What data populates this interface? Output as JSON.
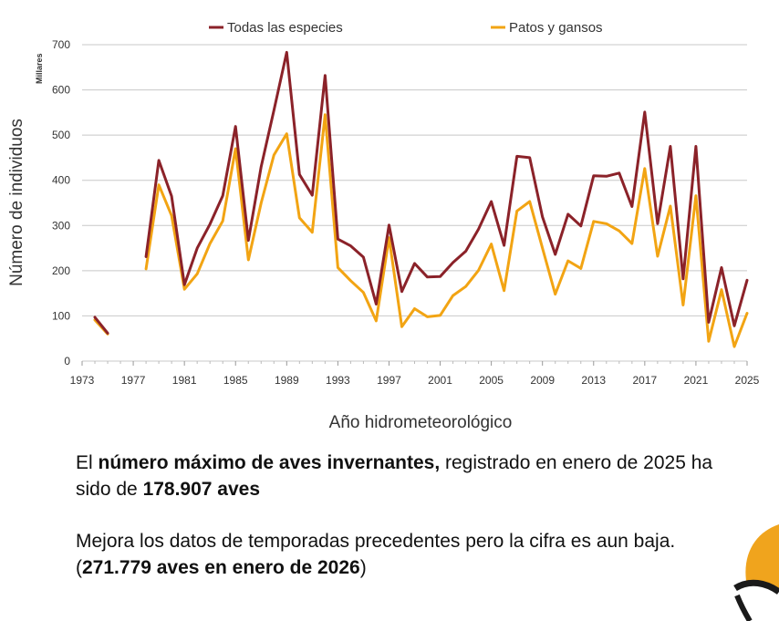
{
  "chart_data": {
    "type": "line",
    "title": "",
    "xlabel": "Año hidrometeorológico",
    "ylabel": "Número de individuos",
    "units_label": "Millares",
    "xlim": [
      1973,
      2025
    ],
    "ylim": [
      0,
      700
    ],
    "x_ticks": [
      1973,
      1977,
      1981,
      1985,
      1989,
      1993,
      1997,
      2001,
      2005,
      2009,
      2013,
      2017,
      2021,
      2025
    ],
    "y_ticks": [
      0,
      100,
      200,
      300,
      400,
      500,
      600,
      700
    ],
    "legend_position": "top",
    "grid": true,
    "series": [
      {
        "name": "Todas las especies",
        "color": "#8b2229",
        "segments": [
          [
            [
              1974,
              97
            ],
            [
              1975,
              62
            ]
          ],
          [
            [
              1978,
              231
            ],
            [
              1979,
              444
            ],
            [
              1980,
              365
            ],
            [
              1981,
              169
            ],
            [
              1982,
              250
            ],
            [
              1983,
              303
            ],
            [
              1984,
              366
            ],
            [
              1985,
              519
            ],
            [
              1986,
              267
            ],
            [
              1987,
              430
            ],
            [
              1988,
              555
            ],
            [
              1989,
              683
            ],
            [
              1990,
              413
            ],
            [
              1991,
              367
            ],
            [
              1992,
              632
            ],
            [
              1993,
              270
            ],
            [
              1994,
              255
            ],
            [
              1995,
              230
            ],
            [
              1996,
              126
            ],
            [
              1997,
              301
            ],
            [
              1998,
              154
            ],
            [
              1999,
              216
            ],
            [
              2000,
              186
            ],
            [
              2001,
              187
            ],
            [
              2002,
              218
            ],
            [
              2003,
              243
            ],
            [
              2004,
              292
            ],
            [
              2005,
              353
            ],
            [
              2006,
              256
            ],
            [
              2007,
              453
            ],
            [
              2008,
              450
            ],
            [
              2009,
              319
            ],
            [
              2010,
              236
            ],
            [
              2011,
              325
            ],
            [
              2012,
              299
            ],
            [
              2013,
              410
            ],
            [
              2014,
              409
            ],
            [
              2015,
              416
            ],
            [
              2016,
              342
            ],
            [
              2017,
              551
            ],
            [
              2018,
              304
            ],
            [
              2019,
              475
            ],
            [
              2020,
              182
            ],
            [
              2021,
              475
            ],
            [
              2022,
              86
            ],
            [
              2023,
              207
            ],
            [
              2024,
              78
            ],
            [
              2025,
              179
            ]
          ]
        ]
      },
      {
        "name": "Patos y gansos",
        "color": "#f2a413",
        "segments": [
          [
            [
              1974,
              91
            ],
            [
              1975,
              60
            ]
          ],
          [
            [
              1978,
              204
            ],
            [
              1979,
              390
            ],
            [
              1980,
              322
            ],
            [
              1981,
              159
            ],
            [
              1982,
              193
            ],
            [
              1983,
              260
            ],
            [
              1984,
              310
            ],
            [
              1985,
              470
            ],
            [
              1986,
              224
            ],
            [
              1987,
              350
            ],
            [
              1988,
              456
            ],
            [
              1989,
              503
            ],
            [
              1990,
              317
            ],
            [
              1991,
              285
            ],
            [
              1992,
              545
            ],
            [
              1993,
              207
            ],
            [
              1994,
              178
            ],
            [
              1995,
              152
            ],
            [
              1996,
              89
            ],
            [
              1997,
              273
            ],
            [
              1998,
              76
            ],
            [
              1999,
              116
            ],
            [
              2000,
              98
            ],
            [
              2001,
              101
            ],
            [
              2002,
              145
            ],
            [
              2003,
              165
            ],
            [
              2004,
              201
            ],
            [
              2005,
              259
            ],
            [
              2006,
              156
            ],
            [
              2007,
              332
            ],
            [
              2008,
              353
            ],
            [
              2009,
              250
            ],
            [
              2010,
              148
            ],
            [
              2011,
              222
            ],
            [
              2012,
              205
            ],
            [
              2013,
              309
            ],
            [
              2014,
              304
            ],
            [
              2015,
              288
            ],
            [
              2016,
              260
            ],
            [
              2017,
              426
            ],
            [
              2018,
              232
            ],
            [
              2019,
              343
            ],
            [
              2020,
              124
            ],
            [
              2021,
              366
            ],
            [
              2022,
              44
            ],
            [
              2023,
              158
            ],
            [
              2024,
              32
            ],
            [
              2025,
              106
            ]
          ]
        ]
      }
    ]
  },
  "text": {
    "p1_pre": "El ",
    "p1_bold1": "número máximo de aves invernantes,",
    "p1_mid": " registrado en enero de 2025 ha sido de ",
    "p1_bold2": "178.907 aves",
    "p2_pre": "Mejora los datos de temporadas precedentes pero la cifra es aun baja. (",
    "p2_bold": "271.779 aves en enero de 2026",
    "p2_post": ")"
  },
  "colors": {
    "accent_orange": "#f0a41d",
    "logo_dark": "#1a1a1a",
    "grid": "#c8c8c8"
  }
}
